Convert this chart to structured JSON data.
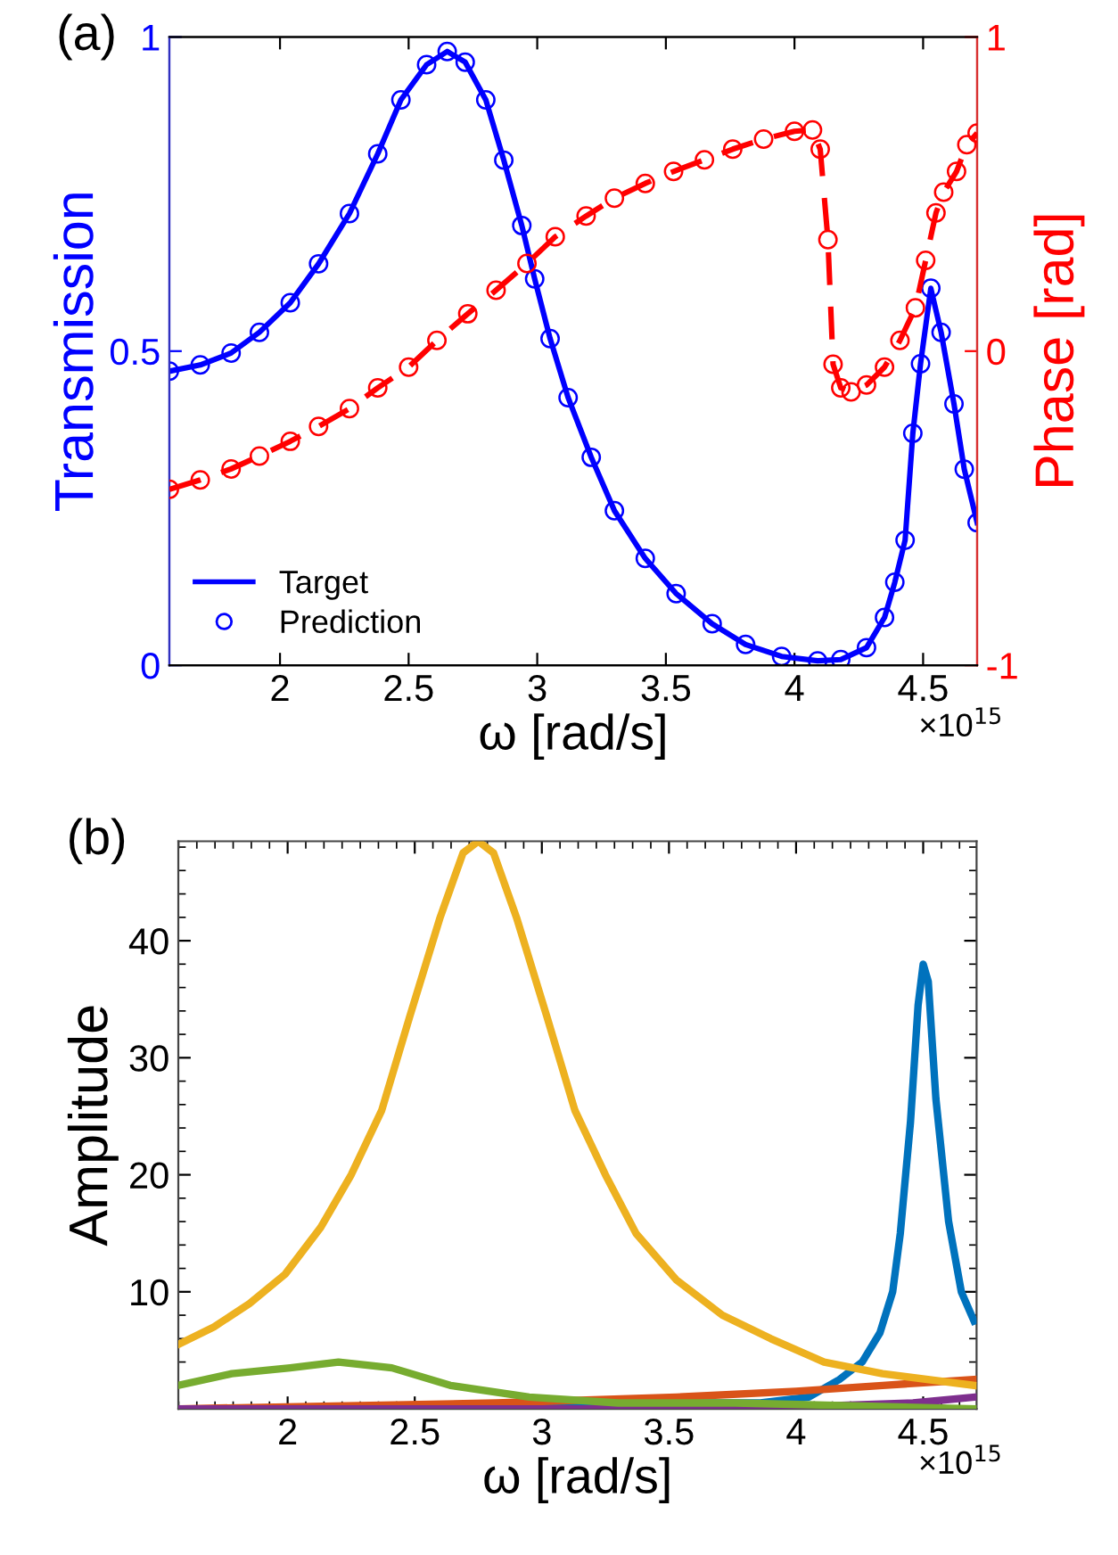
{
  "chart_data": [
    {
      "type": "line",
      "xlabel": "ω [rad/s]",
      "ylabel": "Transmission",
      "y2label": "Phase [rad]",
      "annotations": [
        "(a)",
        "×10$^{15}$"
      ],
      "xlim": [
        1.57,
        4.71
      ],
      "xticks": [
        2,
        2.5,
        3,
        3.5,
        4,
        4.5
      ],
      "ylim": [
        0,
        1
      ],
      "yticks": [
        0,
        0.5,
        1
      ],
      "y2lim": [
        -1,
        1
      ],
      "y2ticks": [
        -1,
        0,
        1
      ],
      "grid": false,
      "legend": "bottom left",
      "series": [
        {
          "name": "Target",
          "type": "line",
          "color": "#0000ff",
          "line_style": "solid",
          "x": [
            1.57,
            1.69,
            1.81,
            1.92,
            2.04,
            2.15,
            2.27,
            2.38,
            2.47,
            2.57,
            2.65,
            2.72,
            2.8,
            2.87,
            2.94,
            2.99,
            3.05,
            3.12,
            3.21,
            3.3,
            3.42,
            3.54,
            3.68,
            3.81,
            3.95,
            4.09,
            4.18,
            4.28,
            4.35,
            4.39,
            4.43,
            4.46,
            4.49,
            4.53,
            4.57,
            4.62,
            4.66,
            4.71
          ],
          "values": [
            0.468,
            0.478,
            0.497,
            0.53,
            0.577,
            0.639,
            0.719,
            0.814,
            0.9,
            0.956,
            0.977,
            0.96,
            0.9,
            0.804,
            0.7,
            0.615,
            0.52,
            0.426,
            0.331,
            0.246,
            0.17,
            0.114,
            0.066,
            0.033,
            0.014,
            0.007,
            0.009,
            0.028,
            0.076,
            0.132,
            0.199,
            0.369,
            0.48,
            0.6,
            0.53,
            0.416,
            0.312,
            0.227
          ]
        },
        {
          "name": "Prediction",
          "type": "scatter",
          "marker": "circle",
          "color": "#0000ff",
          "x": [
            1.57,
            1.69,
            1.81,
            1.92,
            2.04,
            2.15,
            2.27,
            2.38,
            2.47,
            2.57,
            2.65,
            2.72,
            2.8,
            2.87,
            2.94,
            2.99,
            3.05,
            3.12,
            3.21,
            3.3,
            3.42,
            3.54,
            3.68,
            3.81,
            3.95,
            4.09,
            4.18,
            4.28,
            4.35,
            4.39,
            4.43,
            4.46,
            4.49,
            4.53,
            4.57,
            4.62,
            4.66,
            4.71
          ],
          "values": [
            0.468,
            0.478,
            0.497,
            0.53,
            0.577,
            0.639,
            0.719,
            0.814,
            0.9,
            0.956,
            0.977,
            0.96,
            0.9,
            0.804,
            0.7,
            0.615,
            0.52,
            0.426,
            0.331,
            0.246,
            0.17,
            0.114,
            0.066,
            0.033,
            0.014,
            0.007,
            0.009,
            0.028,
            0.076,
            0.132,
            0.199,
            0.369,
            0.48,
            0.6,
            0.53,
            0.416,
            0.312,
            0.227
          ]
        },
        {
          "type": "line",
          "axis": "y2",
          "color": "#ff0000",
          "line_style": "dashed",
          "x": [
            1.57,
            1.69,
            1.81,
            1.92,
            2.04,
            2.15,
            2.27,
            2.38,
            2.5,
            2.61,
            2.73,
            2.84,
            2.96,
            3.07,
            3.19,
            3.3,
            3.42,
            3.53,
            3.65,
            3.76,
            3.88,
            4.0,
            4.07,
            4.1,
            4.13,
            4.15,
            4.18,
            4.22,
            4.28,
            4.35,
            4.41,
            4.47,
            4.51,
            4.55,
            4.58,
            4.63,
            4.67,
            4.71
          ],
          "values": [
            -0.44,
            -0.41,
            -0.375,
            -0.334,
            -0.287,
            -0.24,
            -0.183,
            -0.117,
            -0.051,
            0.034,
            0.119,
            0.194,
            0.279,
            0.364,
            0.43,
            0.487,
            0.534,
            0.572,
            0.609,
            0.643,
            0.675,
            0.7,
            0.704,
            0.643,
            0.355,
            -0.042,
            -0.117,
            -0.13,
            -0.108,
            -0.051,
            0.034,
            0.138,
            0.289,
            0.44,
            0.506,
            0.572,
            0.657,
            0.694
          ]
        },
        {
          "type": "scatter",
          "axis": "y2",
          "marker": "circle",
          "color": "#ff0000",
          "x": [
            1.57,
            1.69,
            1.81,
            1.92,
            2.04,
            2.15,
            2.27,
            2.38,
            2.5,
            2.61,
            2.73,
            2.84,
            2.96,
            3.07,
            3.19,
            3.3,
            3.42,
            3.53,
            3.65,
            3.76,
            3.88,
            4.0,
            4.07,
            4.1,
            4.13,
            4.15,
            4.18,
            4.22,
            4.28,
            4.35,
            4.41,
            4.47,
            4.51,
            4.55,
            4.58,
            4.63,
            4.67,
            4.71
          ],
          "values": [
            -0.44,
            -0.41,
            -0.375,
            -0.334,
            -0.287,
            -0.24,
            -0.183,
            -0.117,
            -0.051,
            0.034,
            0.119,
            0.194,
            0.279,
            0.364,
            0.43,
            0.487,
            0.534,
            0.572,
            0.609,
            0.643,
            0.675,
            0.7,
            0.704,
            0.643,
            0.355,
            -0.042,
            -0.117,
            -0.13,
            -0.108,
            -0.051,
            0.034,
            0.138,
            0.289,
            0.44,
            0.506,
            0.572,
            0.657,
            0.694
          ]
        }
      ]
    },
    {
      "type": "line",
      "xlabel": "ω [rad/s]",
      "ylabel": "Amplitude",
      "annotations": [
        "(b)",
        "×10$^{15}$"
      ],
      "xlim": [
        1.57,
        4.71
      ],
      "xticks": [
        2,
        2.5,
        3,
        3.5,
        4,
        4.5
      ],
      "ylim": [
        0,
        48.5
      ],
      "yticks": [
        10,
        20,
        30,
        40
      ],
      "grid": false,
      "legend": false,
      "series": [
        {
          "color": "#0072bd",
          "x": [
            1.57,
            2.82,
            3.52,
            3.86,
            4.05,
            4.17,
            4.26,
            4.33,
            4.38,
            4.41,
            4.45,
            4.48,
            4.5,
            4.52,
            4.55,
            4.6,
            4.65,
            4.7
          ],
          "values": [
            0,
            0,
            0.5,
            0.5,
            1,
            2.5,
            4,
            6.5,
            10,
            15,
            24.5,
            34.5,
            38,
            36.5,
            26.5,
            16,
            10,
            7.5
          ]
        },
        {
          "color": "#d95319",
          "x": [
            1.57,
            2.82,
            3.53,
            4.0,
            4.34,
            4.7
          ],
          "values": [
            0,
            0.5,
            1,
            1.5,
            2,
            2.5
          ]
        },
        {
          "color": "#edb120",
          "x": [
            1.57,
            1.71,
            1.85,
            1.99,
            2.13,
            2.25,
            2.37,
            2.48,
            2.6,
            2.69,
            2.75,
            2.81,
            2.9,
            3.02,
            3.13,
            3.25,
            3.37,
            3.53,
            3.71,
            3.9,
            4.11,
            4.34,
            4.7
          ],
          "values": [
            5.5,
            7,
            9,
            11.5,
            15.5,
            20,
            25.5,
            33.5,
            42,
            47.5,
            48.5,
            47.5,
            42,
            33.5,
            25.5,
            20,
            15,
            11,
            8,
            6,
            4,
            3,
            2
          ]
        },
        {
          "color": "#7e2f8e",
          "x": [
            1.57,
            3.76,
            4.46,
            4.7
          ],
          "values": [
            0,
            0,
            0.5,
            1
          ]
        },
        {
          "color": "#77ac30",
          "x": [
            1.57,
            1.78,
            2.01,
            2.2,
            2.41,
            2.64,
            2.95,
            3.3,
            3.76,
            4.7
          ],
          "values": [
            2,
            3,
            3.5,
            4,
            3.5,
            2,
            1,
            0.5,
            0.5,
            0
          ]
        }
      ]
    }
  ]
}
